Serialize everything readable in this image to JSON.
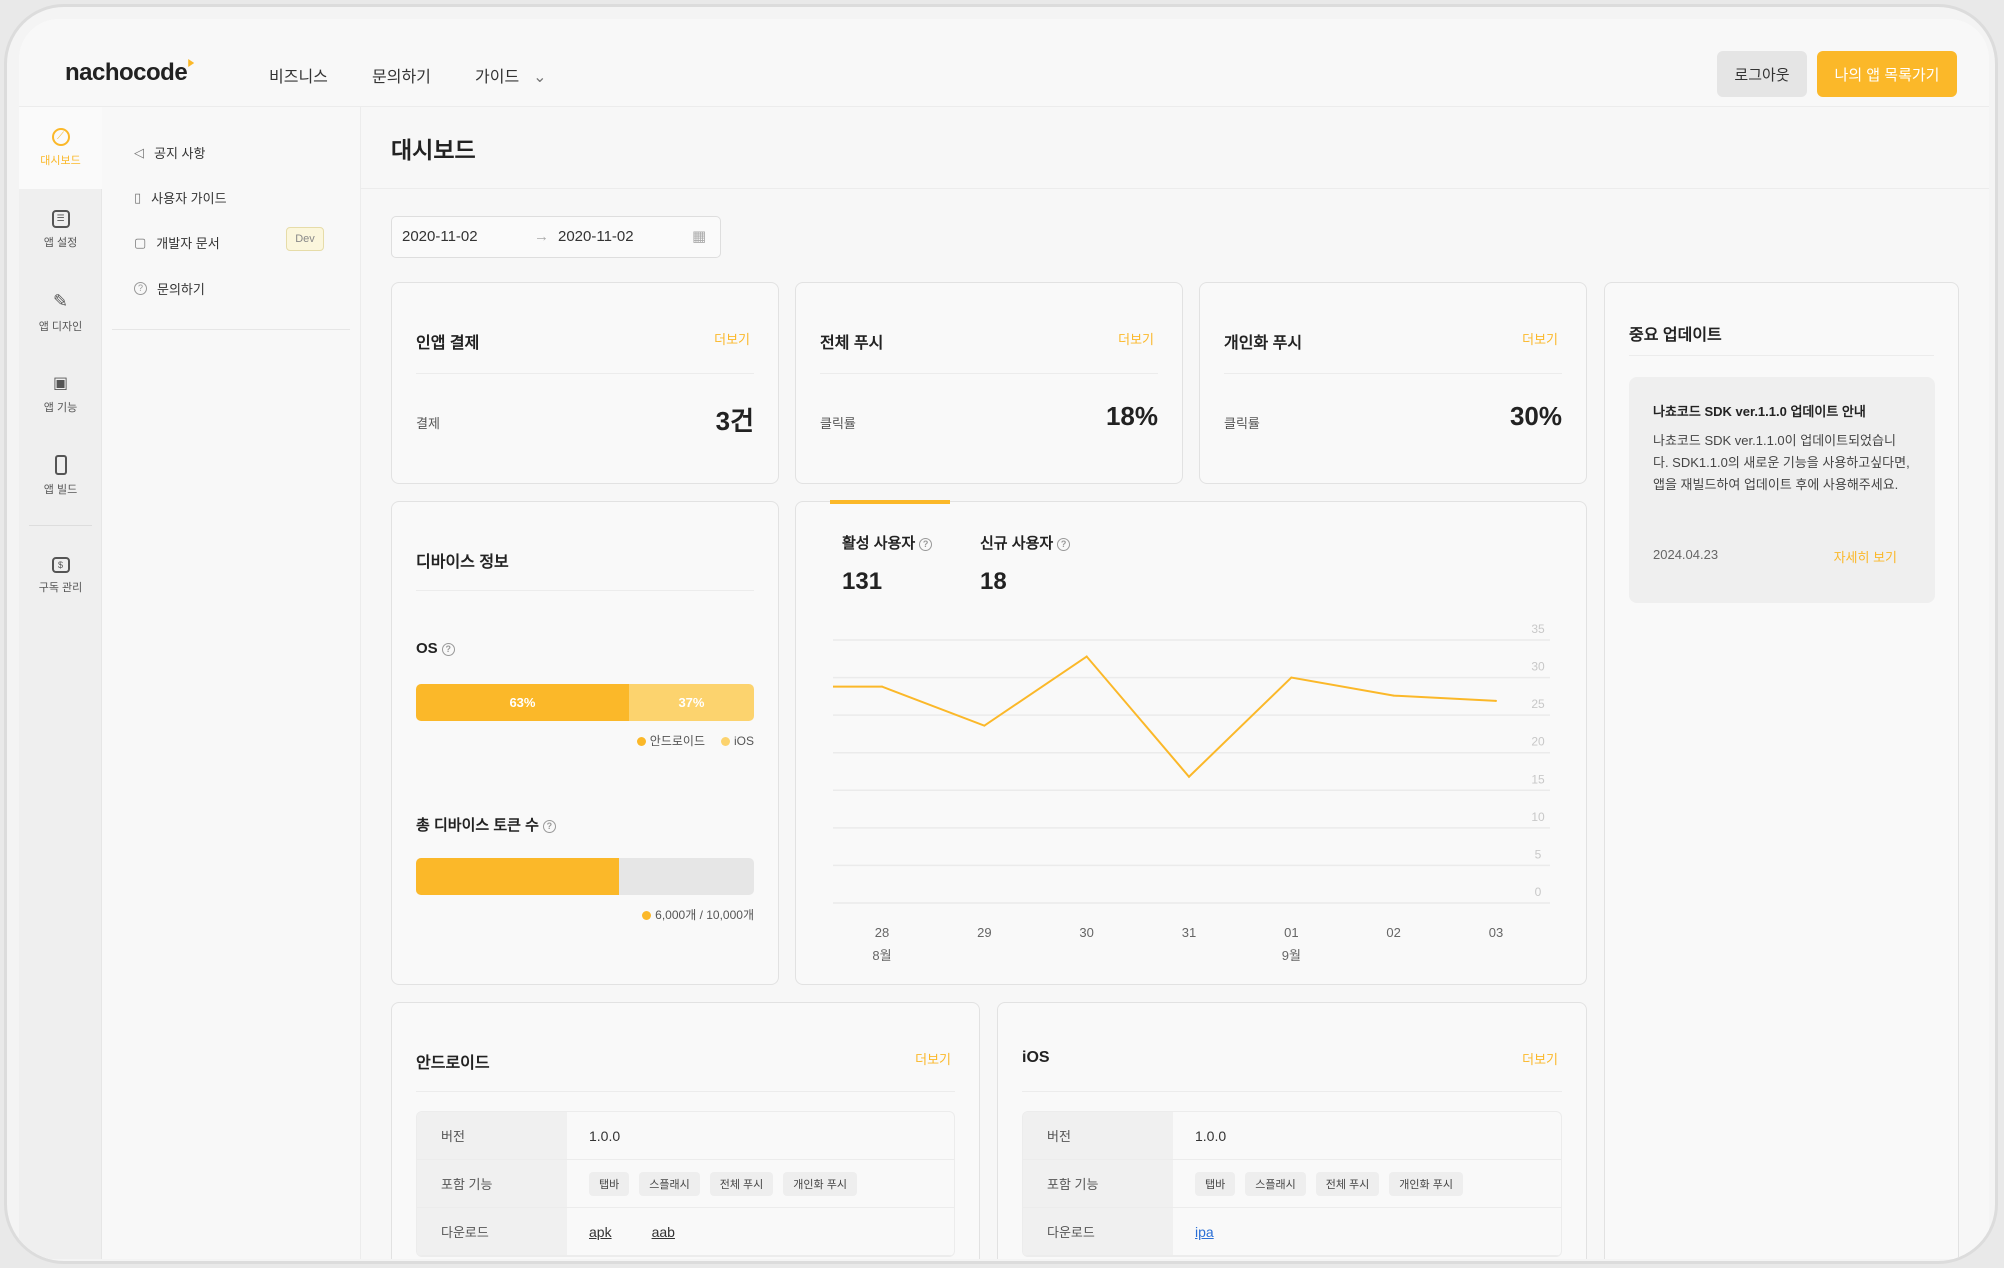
{
  "brand": {
    "logo": "nachocode",
    "accent": "#FBB829",
    "accent_light": "#FCD36E"
  },
  "nav": {
    "items": [
      "비즈니스",
      "문의하기",
      "가이드"
    ],
    "logout": "로그아웃",
    "my_apps": "나의 앱 목록가기"
  },
  "rail": [
    {
      "label": "대시보드",
      "icon": "compass-icon"
    },
    {
      "label": "앱 설정",
      "icon": "settings-icon"
    },
    {
      "label": "앱 디자인",
      "icon": "pen-icon"
    },
    {
      "label": "앱 기능",
      "icon": "grid-icon"
    },
    {
      "label": "앱 빌드",
      "icon": "phone-icon"
    },
    {
      "label": "구독 관리",
      "icon": "bag-icon"
    }
  ],
  "sub": [
    {
      "label": "공지 사항",
      "icon": "megaphone-icon"
    },
    {
      "label": "사용자 가이드",
      "icon": "book-icon"
    },
    {
      "label": "개발자 문서",
      "icon": "document-icon",
      "badge": "Dev"
    },
    {
      "label": "문의하기",
      "icon": "help-icon"
    }
  ],
  "page": {
    "title": "대시보드",
    "date_from": "2020-11-02",
    "date_to": "2020-11-02",
    "arrow": "→"
  },
  "stats": [
    {
      "title": "인앱 결제",
      "more": "더보기",
      "label": "결제",
      "value": "3건"
    },
    {
      "title": "전체 푸시",
      "more": "더보기",
      "label": "클릭률",
      "value": "18%"
    },
    {
      "title": "개인화 푸시",
      "more": "더보기",
      "label": "클릭률",
      "value": "30%"
    }
  ],
  "device": {
    "title": "디바이스 정보",
    "os_label": "OS",
    "android_pct": 63,
    "ios_pct": 37,
    "android_text": "63%",
    "ios_text": "37%",
    "legend_android": "안드로이드",
    "legend_ios": "iOS",
    "token_label": "총 디바이스 토큰 수",
    "token_used": 6000,
    "token_total": 10000,
    "token_text": "6,000개 / 10,000개"
  },
  "users": {
    "active_label": "활성 사용자",
    "active_value": "131",
    "new_label": "신규 사용자",
    "new_value": "18"
  },
  "chart_data": {
    "type": "line",
    "categories": [
      "28",
      "29",
      "30",
      "31",
      "01",
      "02",
      "03"
    ],
    "month_labels": {
      "28": "8월",
      "01": "9월"
    },
    "values": [
      28.8,
      23.6,
      32.8,
      16.8,
      30,
      27.6,
      26.9
    ],
    "ylim": [
      0,
      35
    ],
    "yticks": [
      "0",
      "5",
      "10",
      "15",
      "20",
      "25",
      "30",
      "35"
    ],
    "grid": true,
    "color": "#FBB829"
  },
  "update": {
    "title": "중요 업데이트",
    "item_title": "나쵸코드 SDK ver.1.1.0 업데이트 안내",
    "item_body": "나쵸코드 SDK ver.1.1.0이 업데이트되었습니다. SDK1.1.0의 새로운 기능을 사용하고싶다면, 앱을 재빌드하여 업데이트 후에 사용해주세요.",
    "date": "2024.04.23",
    "link": "자세히 보기"
  },
  "android": {
    "title": "안드로이드",
    "more": "더보기",
    "version_label": "버전",
    "version": "1.0.0",
    "features_label": "포함 기능",
    "features": [
      "탭바",
      "스플래시",
      "전체 푸시",
      "개인화 푸시"
    ],
    "download_label": "다운로드",
    "downloads": [
      "apk",
      "aab"
    ]
  },
  "ios": {
    "title": "iOS",
    "more": "더보기",
    "version_label": "버전",
    "version": "1.0.0",
    "features_label": "포함 기능",
    "features": [
      "탭바",
      "스플래시",
      "전체 푸시",
      "개인화 푸시"
    ],
    "download_label": "다운로드",
    "downloads": [
      "ipa"
    ]
  }
}
